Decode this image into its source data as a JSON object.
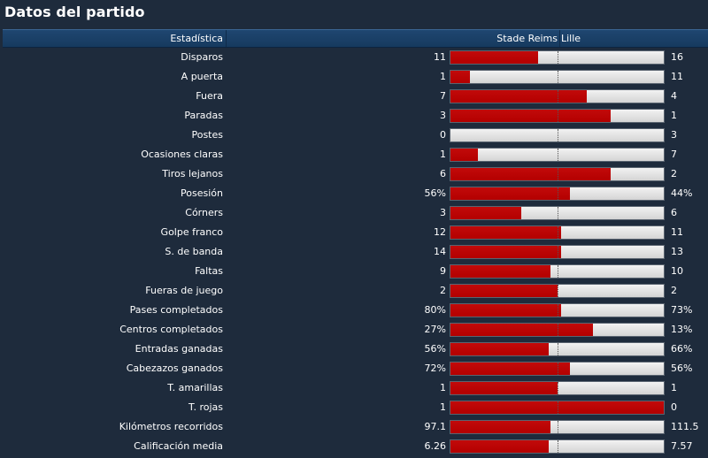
{
  "title": "Datos del partido",
  "header": {
    "stat": "Estadística",
    "home": "Stade Reims",
    "away": "Lille"
  },
  "colors": {
    "home_bar": "#b30000",
    "away_bar": "#e2e2e2",
    "background": "#1e2b3c",
    "header": "#1a416a"
  },
  "stats": [
    {
      "label": "Disparos",
      "home": "11",
      "away": "16",
      "home_share": 0.41
    },
    {
      "label": "A puerta",
      "home": "1",
      "away": "11",
      "home_share": 0.09
    },
    {
      "label": "Fuera",
      "home": "7",
      "away": "4",
      "home_share": 0.64
    },
    {
      "label": "Paradas",
      "home": "3",
      "away": "1",
      "home_share": 0.75
    },
    {
      "label": "Postes",
      "home": "0",
      "away": "3",
      "home_share": 0.0
    },
    {
      "label": "Ocasiones claras",
      "home": "1",
      "away": "7",
      "home_share": 0.13
    },
    {
      "label": "Tiros lejanos",
      "home": "6",
      "away": "2",
      "home_share": 0.75
    },
    {
      "label": "Posesión",
      "home": "56%",
      "away": "44%",
      "home_share": 0.56
    },
    {
      "label": "Córners",
      "home": "3",
      "away": "6",
      "home_share": 0.33
    },
    {
      "label": "Golpe franco",
      "home": "12",
      "away": "11",
      "home_share": 0.52
    },
    {
      "label": "S. de banda",
      "home": "14",
      "away": "13",
      "home_share": 0.52
    },
    {
      "label": "Faltas",
      "home": "9",
      "away": "10",
      "home_share": 0.47
    },
    {
      "label": "Fueras de juego",
      "home": "2",
      "away": "2",
      "home_share": 0.5
    },
    {
      "label": "Pases completados",
      "home": "80%",
      "away": "73%",
      "home_share": 0.52
    },
    {
      "label": "Centros completados",
      "home": "27%",
      "away": "13%",
      "home_share": 0.67
    },
    {
      "label": "Entradas ganadas",
      "home": "56%",
      "away": "66%",
      "home_share": 0.46
    },
    {
      "label": "Cabezazos ganados",
      "home": "72%",
      "away": "56%",
      "home_share": 0.56
    },
    {
      "label": "T. amarillas",
      "home": "1",
      "away": "1",
      "home_share": 0.5
    },
    {
      "label": "T. rojas",
      "home": "1",
      "away": "0",
      "home_share": 1.0
    },
    {
      "label": "Kilómetros recorridos",
      "home": "97.1",
      "away": "111.5",
      "home_share": 0.47
    },
    {
      "label": "Calificación media",
      "home": "6.26",
      "away": "7.57",
      "home_share": 0.46
    }
  ]
}
